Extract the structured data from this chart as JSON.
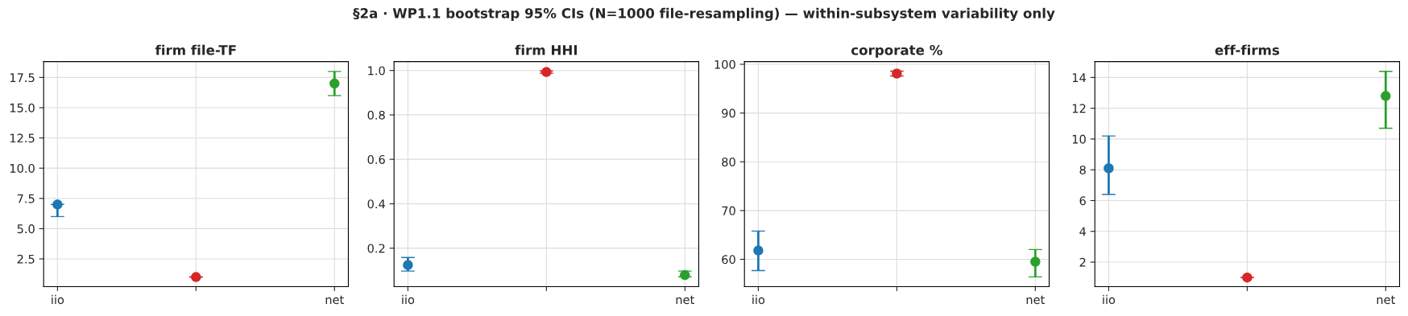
{
  "chart_data": [
    {
      "type": "scatter",
      "title": "firm file-TF",
      "annotations": [
        "§2a · WP1.1 bootstrap 95% CIs (N=1000 file-resampling) — within-subsystem variability only"
      ],
      "categories": [
        "iio",
        null,
        "net"
      ],
      "values": [
        7.0,
        1.0,
        17.0
      ],
      "colors": [
        "#1f77b4",
        "#d62728",
        "#2ca02c"
      ],
      "errors": [
        [
          6.0,
          7.0
        ],
        [
          1.0,
          1.0
        ],
        [
          16.0,
          18.0
        ]
      ],
      "ylim": [
        0.21,
        18.81
      ],
      "yticks": [
        {
          "value": 2.5,
          "label": "2.5"
        },
        {
          "value": 5,
          "label": "5.0"
        },
        {
          "value": 7.5,
          "label": "7.5"
        },
        {
          "value": 10,
          "label": "10.0"
        },
        {
          "value": 12.5,
          "label": "12.5"
        },
        {
          "value": 15,
          "label": "15.0"
        },
        {
          "value": 17.5,
          "label": "17.5"
        }
      ],
      "grid": true,
      "marker": "circle"
    },
    {
      "type": "scatter",
      "title": "firm HHI",
      "categories": [
        "iio",
        null,
        "net"
      ],
      "values": [
        0.124,
        0.993,
        0.079
      ],
      "colors": [
        "#1f77b4",
        "#d62728",
        "#2ca02c"
      ],
      "errors": [
        [
          0.097,
          0.158
        ],
        [
          0.988,
          0.998
        ],
        [
          0.071,
          0.097
        ]
      ],
      "ylim": [
        0.027,
        1.04
      ],
      "yticks": [
        0.2,
        0.4,
        0.6,
        0.8,
        {
          "value": 1.0,
          "label": "1.0"
        }
      ],
      "grid": true,
      "marker": "circle"
    },
    {
      "type": "scatter",
      "title": "corporate %",
      "categories": [
        "iio",
        null,
        "net"
      ],
      "values": [
        61.8,
        98.1,
        59.5
      ],
      "colors": [
        "#1f77b4",
        "#d62728",
        "#2ca02c"
      ],
      "errors": [
        [
          57.7,
          65.8
        ],
        [
          97.6,
          98.6
        ],
        [
          56.4,
          62.0
        ]
      ],
      "ylim": [
        54.4,
        100.55
      ],
      "yticks": [
        60,
        70,
        80,
        90,
        100
      ],
      "grid": true,
      "marker": "circle"
    },
    {
      "type": "scatter",
      "title": "eff-firms",
      "categories": [
        "iio",
        null,
        "net"
      ],
      "values": [
        8.1,
        1.0,
        12.8
      ],
      "colors": [
        "#1f77b4",
        "#d62728",
        "#2ca02c"
      ],
      "errors": [
        [
          6.4,
          10.2
        ],
        [
          1.0,
          1.0
        ],
        [
          10.7,
          14.4
        ]
      ],
      "ylim": [
        0.41,
        15.03
      ],
      "yticks": [
        2,
        4,
        6,
        8,
        10,
        12,
        14
      ],
      "grid": true,
      "marker": "circle"
    }
  ]
}
